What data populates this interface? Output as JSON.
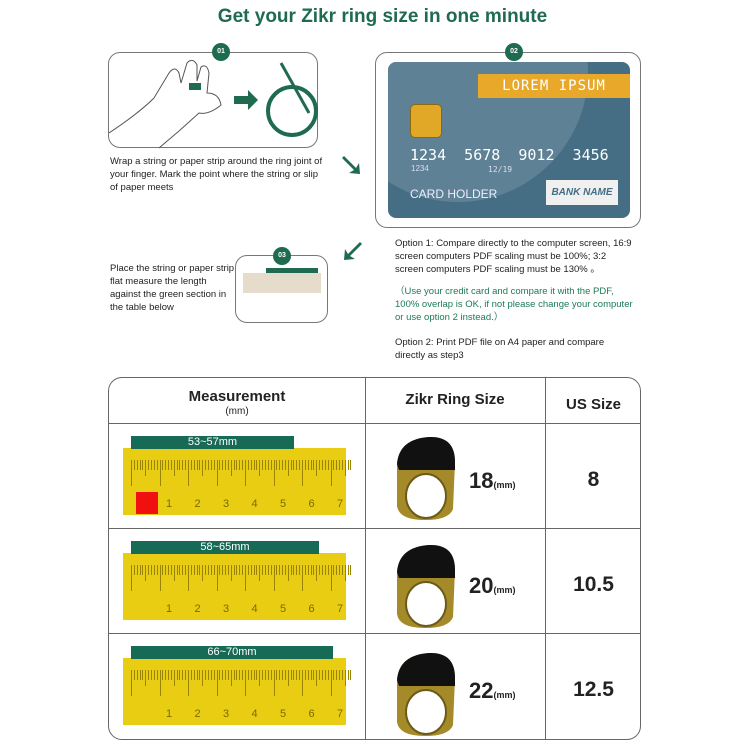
{
  "title": "Get your Zikr ring size in one minute",
  "steps": {
    "step1": {
      "badge": "01",
      "text": "Wrap a string or paper strip around the ring joint of your finger. Mark the point where the string or slip of paper meets"
    },
    "step2": {
      "badge": "02"
    },
    "step3": {
      "badge": "03",
      "text": "Place the string or paper strip flat measure the length against the green section in the table below"
    }
  },
  "card": {
    "brand": "LOREM IPSUM",
    "number": "1234  5678  9012  3456",
    "small_number": "1234",
    "expiry": "12/19",
    "holder": "CARD HOLDER",
    "bank": "BANK NAME"
  },
  "options": {
    "option1": "Option 1: Compare directly to the computer screen, 16:9 screen computers PDF scaling must be 100%; 3:2 screen computers PDF scaling must be 130% 。",
    "note": "（Use your credit card and compare it with the PDF, 100% overlap is OK, if not please change your computer or use option 2 instead.）",
    "option2": "Option 2: Print PDF file on A4 paper and compare directly as step3"
  },
  "table": {
    "headers": {
      "measurement": "Measurement",
      "measurement_unit": "(mm)",
      "zikr": "Zikr Ring Size",
      "us": "US Size"
    },
    "ruler_ticks": [
      "1",
      "2",
      "3",
      "4",
      "5",
      "6",
      "7"
    ],
    "rows": [
      {
        "range": "53~57mm",
        "zikr": "18",
        "unit": "(mm)",
        "us": "8"
      },
      {
        "range": "58~65mm",
        "zikr": "20",
        "unit": "(mm)",
        "us": "10.5"
      },
      {
        "range": "66~70mm",
        "zikr": "22",
        "unit": "(mm)",
        "us": "12.5"
      }
    ]
  },
  "colors": {
    "brand_green": "#1e6b4f",
    "card_blue": "#456e85",
    "card_gold": "#e8a92a",
    "ruler_yellow": "#e8cd12"
  }
}
